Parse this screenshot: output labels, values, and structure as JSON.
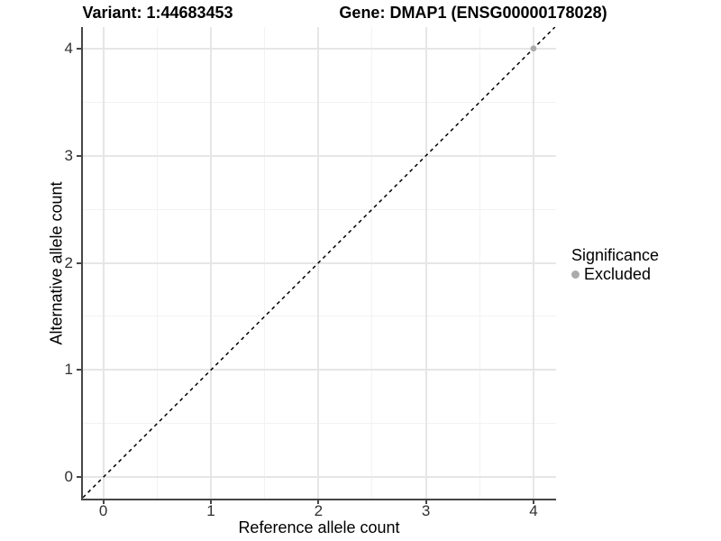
{
  "chart_data": {
    "type": "scatter",
    "titles": {
      "variant": "Variant: 1:44683453",
      "gene": "Gene: DMAP1 (ENSG00000178028)"
    },
    "xlabel": "Reference allele count",
    "ylabel": "Alternative allele count",
    "xlim": [
      -0.19,
      4.21
    ],
    "ylim": [
      -0.2,
      4.2
    ],
    "xticks": [
      0,
      1,
      2,
      3,
      4
    ],
    "yticks": [
      0,
      1,
      2,
      3,
      4
    ],
    "x_minor_ticks": [
      0.5,
      1.5,
      2.5,
      3.5
    ],
    "y_minor_ticks": [
      0.5,
      1.5,
      2.5,
      3.5
    ],
    "grid": "major+minor",
    "reference_line": {
      "kind": "abline",
      "slope": 1,
      "intercept": 0,
      "style": "dashed"
    },
    "series": [
      {
        "name": "Excluded",
        "points": [
          {
            "x": 4,
            "y": 4
          }
        ]
      }
    ],
    "legend": {
      "title": "Significance",
      "position": "right",
      "entries": [
        {
          "label": "Excluded",
          "marker": "circle"
        }
      ]
    }
  },
  "colors": {
    "background": "#ffffff",
    "axis_line": "#464646",
    "tick_label": "#303030",
    "grid_major": "#e6e6e6",
    "grid_minor": "#f2f2f2",
    "reference_line": "#000000",
    "excluded_point": "#ababab",
    "text": "#000000"
  }
}
